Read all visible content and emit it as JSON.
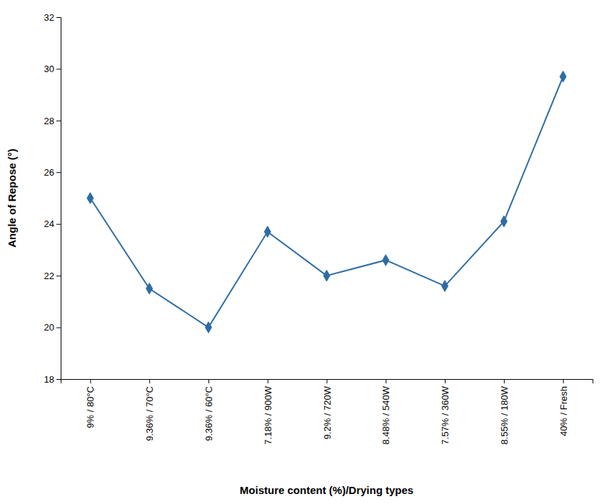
{
  "chart_data": {
    "type": "line",
    "categories": [
      "9% / 80°C",
      "9.36% / 70°C",
      "9.36% / 60°C",
      "7.18% / 900W",
      "9.2% / 720W",
      "8.48% / 540W",
      "7.57% / 360W",
      "8.55% / 180W",
      "40% / Fresh"
    ],
    "values": [
      25.0,
      21.5,
      20.0,
      23.7,
      22.0,
      22.6,
      21.6,
      24.1,
      29.7
    ],
    "color": "#2E6DA4",
    "marker": "diamond",
    "xlabel": "Moisture content (%)/Drying types",
    "ylabel": "Angle of Repose (°)",
    "ylim": [
      18,
      32
    ],
    "yticks": [
      18,
      20,
      22,
      24,
      26,
      28,
      30,
      32
    ],
    "grid": false
  }
}
